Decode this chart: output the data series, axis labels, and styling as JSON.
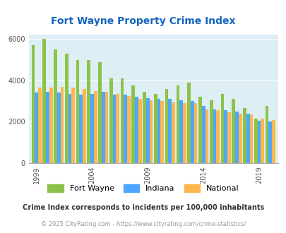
{
  "title": "Fort Wayne Property Crime Index",
  "years": [
    1999,
    2000,
    2001,
    2002,
    2003,
    2004,
    2005,
    2006,
    2007,
    2008,
    2009,
    2010,
    2011,
    2012,
    2013,
    2014,
    2015,
    2016,
    2017,
    2018,
    2019,
    2020
  ],
  "fort_wayne": [
    5700,
    6000,
    5500,
    5300,
    5000,
    5000,
    4900,
    4100,
    4100,
    3750,
    3450,
    3350,
    3600,
    3750,
    3900,
    3200,
    3050,
    3350,
    3100,
    2650,
    2150,
    2750
  ],
  "indiana": [
    3400,
    3450,
    3400,
    3350,
    3300,
    3350,
    3450,
    3300,
    3300,
    3200,
    3150,
    3100,
    3100,
    3050,
    3000,
    2750,
    2600,
    2550,
    2500,
    2400,
    2050,
    2000
  ],
  "national": [
    3650,
    3650,
    3700,
    3650,
    3600,
    3500,
    3450,
    3350,
    3250,
    3100,
    3050,
    3000,
    2950,
    2900,
    2900,
    2600,
    2550,
    2450,
    2400,
    2350,
    2150,
    2100
  ],
  "fort_wayne_color": "#8bc34a",
  "indiana_color": "#4da6ff",
  "national_color": "#ffb74d",
  "bg_color": "#ddeef5",
  "title_color": "#1565c0",
  "ylim": [
    0,
    6200
  ],
  "yticks": [
    0,
    2000,
    4000,
    6000
  ],
  "xtick_years": [
    1999,
    2004,
    2009,
    2014,
    2019
  ],
  "footnote1": "Crime Index corresponds to incidents per 100,000 inhabitants",
  "footnote2": "© 2025 CityRating.com - https://www.cityrating.com/crime-statistics/",
  "footnote1_color": "#333333",
  "footnote2_color": "#999999"
}
